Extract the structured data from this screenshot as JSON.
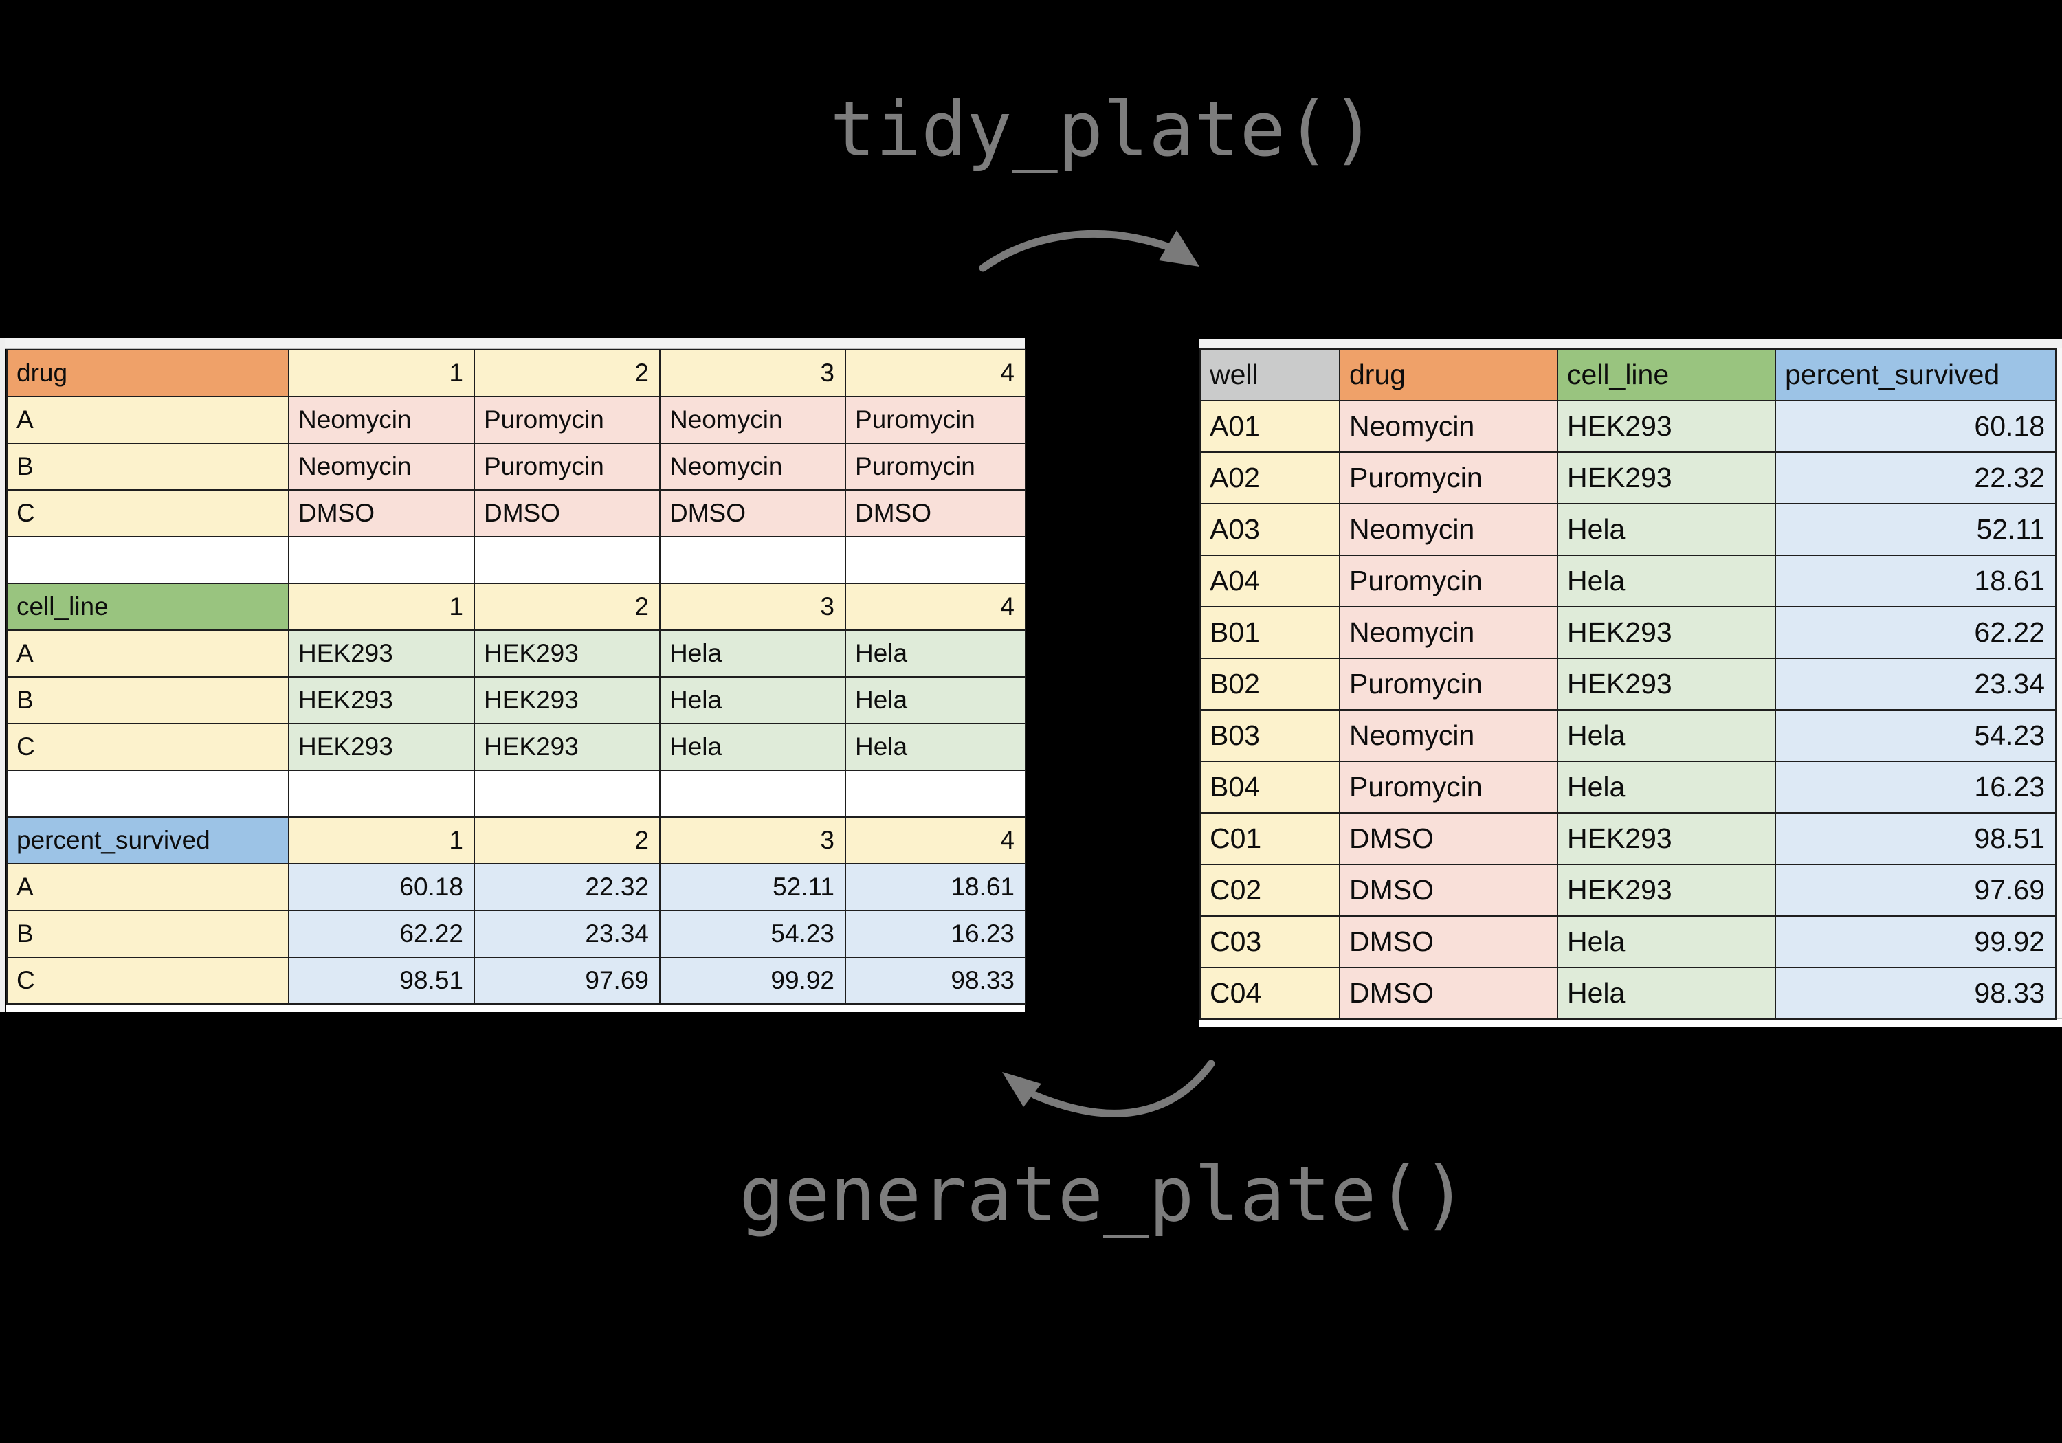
{
  "functions": {
    "tidy": {
      "label": "tidy_plate()"
    },
    "generate": {
      "label": "generate_plate()"
    }
  },
  "colors": {
    "background": "#000000",
    "code_text": "#7d7d7d",
    "arrow": "#7a7a7a",
    "grid_line": "#1e1e1e",
    "yellow": "#fcf2cc",
    "orange_header": "#efa169",
    "pink_cell": "#f9e0d9",
    "green_header": "#99c47f",
    "green_cell": "#dfebd9",
    "blue_header": "#9cc3e6",
    "blue_cell": "#dde9f5",
    "gray_header": "#cacbcb",
    "blank_row": "#ffffff"
  },
  "left_plate": {
    "col_headers": [
      "1",
      "2",
      "3",
      "4"
    ],
    "sections": [
      {
        "name": "drug",
        "header_bg": "#efa169",
        "cell_bg": "#f9e0d9",
        "numeric": false,
        "rows": [
          {
            "label": "A",
            "values": [
              "Neomycin",
              "Puromycin",
              "Neomycin",
              "Puromycin"
            ]
          },
          {
            "label": "B",
            "values": [
              "Neomycin",
              "Puromycin",
              "Neomycin",
              "Puromycin"
            ]
          },
          {
            "label": "C",
            "values": [
              "DMSO",
              "DMSO",
              "DMSO",
              "DMSO"
            ]
          }
        ]
      },
      {
        "name": "cell_line",
        "header_bg": "#99c47f",
        "cell_bg": "#dfebd9",
        "numeric": false,
        "rows": [
          {
            "label": "A",
            "values": [
              "HEK293",
              "HEK293",
              "Hela",
              "Hela"
            ]
          },
          {
            "label": "B",
            "values": [
              "HEK293",
              "HEK293",
              "Hela",
              "Hela"
            ]
          },
          {
            "label": "C",
            "values": [
              "HEK293",
              "HEK293",
              "Hela",
              "Hela"
            ]
          }
        ]
      },
      {
        "name": "percent_survived",
        "header_bg": "#9cc3e6",
        "cell_bg": "#dde9f5",
        "numeric": true,
        "rows": [
          {
            "label": "A",
            "values": [
              "60.18",
              "22.32",
              "52.11",
              "18.61"
            ]
          },
          {
            "label": "B",
            "values": [
              "62.22",
              "23.34",
              "54.23",
              "16.23"
            ]
          },
          {
            "label": "C",
            "values": [
              "98.51",
              "97.69",
              "99.92",
              "98.33"
            ]
          }
        ]
      }
    ]
  },
  "right_table": {
    "columns": [
      {
        "label": "well",
        "bg": "#cacbcb"
      },
      {
        "label": "drug",
        "bg": "#efa169"
      },
      {
        "label": "cell_line",
        "bg": "#99c47f"
      },
      {
        "label": "percent_survived",
        "bg": "#9cc3e6"
      }
    ],
    "cell_bgs": [
      "#fcf2cc",
      "#f9e0d9",
      "#dfebd9",
      "#dde9f5"
    ],
    "rows": [
      [
        "A01",
        "Neomycin",
        "HEK293",
        "60.18"
      ],
      [
        "A02",
        "Puromycin",
        "HEK293",
        "22.32"
      ],
      [
        "A03",
        "Neomycin",
        "Hela",
        "52.11"
      ],
      [
        "A04",
        "Puromycin",
        "Hela",
        "18.61"
      ],
      [
        "B01",
        "Neomycin",
        "HEK293",
        "62.22"
      ],
      [
        "B02",
        "Puromycin",
        "HEK293",
        "23.34"
      ],
      [
        "B03",
        "Neomycin",
        "Hela",
        "54.23"
      ],
      [
        "B04",
        "Puromycin",
        "Hela",
        "16.23"
      ],
      [
        "C01",
        "DMSO",
        "HEK293",
        "98.51"
      ],
      [
        "C02",
        "DMSO",
        "HEK293",
        "97.69"
      ],
      [
        "C03",
        "DMSO",
        "Hela",
        "99.92"
      ],
      [
        "C04",
        "DMSO",
        "Hela",
        "98.33"
      ]
    ]
  }
}
